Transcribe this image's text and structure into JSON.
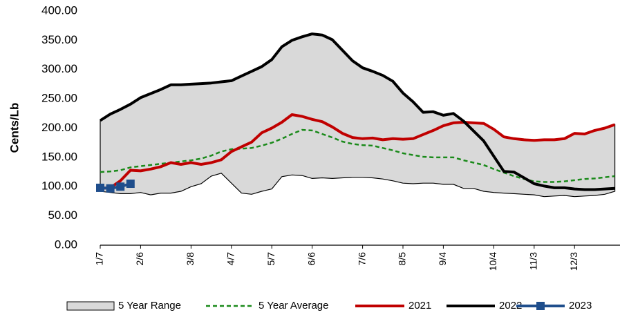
{
  "chart_data": {
    "type": "line",
    "y_label": "Cents/Lb",
    "categories": [
      "1/7",
      null,
      null,
      null,
      "2/6",
      null,
      null,
      null,
      null,
      "3/8",
      null,
      null,
      null,
      "4/7",
      null,
      null,
      null,
      "5/7",
      null,
      null,
      null,
      "6/6",
      null,
      null,
      null,
      null,
      "7/6",
      null,
      null,
      null,
      "8/5",
      null,
      null,
      null,
      "9/4",
      null,
      null,
      null,
      null,
      "10/4",
      null,
      null,
      null,
      "11/3",
      null,
      null,
      null,
      "12/3",
      null,
      null,
      null,
      null
    ],
    "ylim": [
      0,
      400
    ],
    "yticks": [
      {
        "value": 0,
        "label": "0.00"
      },
      {
        "value": 50,
        "label": "50.00"
      },
      {
        "value": 100,
        "label": "100.00"
      },
      {
        "value": 150,
        "label": "150.00"
      },
      {
        "value": 200,
        "label": "200.00"
      },
      {
        "value": 250,
        "label": "250.00"
      },
      {
        "value": 300,
        "label": "300.00"
      },
      {
        "value": 350,
        "label": "350.00"
      },
      {
        "value": 400,
        "label": "400.00"
      }
    ],
    "grid": false,
    "legend": "bottom",
    "series": [
      {
        "name": "5 Year Range",
        "type": "range",
        "color": "#d9d9d9",
        "low": [
          92,
          90,
          88,
          88,
          90,
          86,
          89,
          89,
          92,
          100,
          105,
          118,
          123,
          106,
          89,
          87,
          92,
          96,
          117,
          120,
          119,
          114,
          115,
          114,
          115,
          116,
          116,
          115,
          113,
          110,
          106,
          105,
          106,
          106,
          104,
          104,
          97,
          97,
          92,
          90,
          89,
          88,
          87,
          86,
          83,
          84,
          85,
          83,
          84,
          85,
          87,
          92
        ],
        "high": [
          213,
          224,
          232,
          241,
          252,
          259,
          266,
          274,
          274,
          275,
          276,
          277,
          279,
          281,
          289,
          297,
          305,
          317,
          339,
          350,
          356,
          361,
          359,
          351,
          333,
          315,
          303,
          297,
          290,
          280,
          260,
          245,
          227,
          228,
          222,
          225,
          212,
          209,
          208,
          198,
          185,
          182,
          180,
          179,
          180,
          180,
          182,
          191,
          190,
          196,
          200,
          206
        ]
      },
      {
        "name": "5 Year Average",
        "type": "dashed",
        "color": "#1a8a1a",
        "values": [
          125,
          126,
          128,
          133,
          135,
          137,
          139,
          141,
          143,
          145,
          148,
          153,
          160,
          164,
          165,
          166,
          170,
          175,
          182,
          190,
          197,
          196,
          190,
          184,
          177,
          173,
          171,
          170,
          166,
          162,
          157,
          154,
          151,
          150,
          150,
          150,
          145,
          141,
          137,
          130,
          124,
          118,
          113,
          109,
          108,
          108,
          109,
          111,
          113,
          114,
          116,
          118
        ]
      },
      {
        "name": "2021",
        "type": "line",
        "color": "#c00000",
        "values": [
          97,
          98,
          110,
          128,
          127,
          130,
          134,
          141,
          138,
          141,
          138,
          141,
          146,
          160,
          168,
          176,
          192,
          200,
          210,
          223,
          220,
          215,
          211,
          202,
          191,
          184,
          182,
          183,
          180,
          182,
          181,
          182,
          189,
          196,
          204,
          209,
          210,
          209,
          208,
          198,
          185,
          182,
          180,
          179,
          180,
          180,
          182,
          191,
          190,
          196,
          200,
          206
        ]
      },
      {
        "name": "2022",
        "type": "line",
        "color": "#000000",
        "values": [
          213,
          224,
          232,
          241,
          252,
          259,
          266,
          274,
          274,
          275,
          276,
          277,
          279,
          281,
          289,
          297,
          305,
          317,
          339,
          350,
          356,
          361,
          359,
          351,
          333,
          315,
          303,
          297,
          290,
          280,
          260,
          245,
          227,
          228,
          222,
          225,
          212,
          195,
          178,
          152,
          126,
          125,
          115,
          105,
          101,
          98,
          98,
          96,
          95,
          95,
          96,
          97
        ]
      },
      {
        "name": "2023",
        "type": "marker-line",
        "color": "#1f4e8c",
        "values": [
          98,
          97,
          100,
          105,
          null,
          null,
          null,
          null,
          null,
          null,
          null,
          null,
          null,
          null,
          null,
          null,
          null,
          null,
          null,
          null,
          null,
          null,
          null,
          null,
          null,
          null,
          null,
          null,
          null,
          null,
          null,
          null,
          null,
          null,
          null,
          null,
          null,
          null,
          null,
          null,
          null,
          null,
          null,
          null,
          null,
          null,
          null,
          null,
          null,
          null,
          null,
          null
        ]
      }
    ]
  }
}
